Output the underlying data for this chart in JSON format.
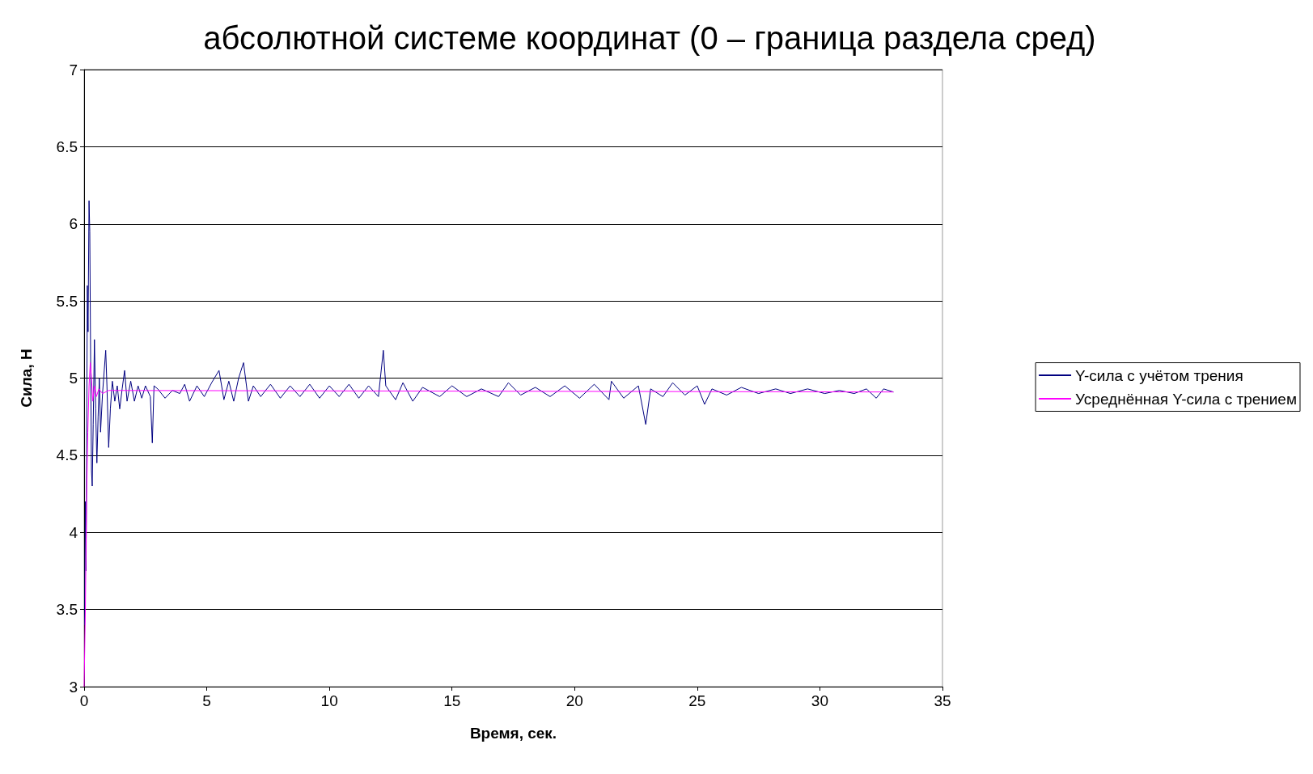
{
  "chart_data": {
    "type": "line",
    "title": "абсолютной системе координат (0 – граница раздела сред)",
    "xlabel": "Время, сек.",
    "ylabel": "Сила, Н",
    "xlim": [
      0,
      35
    ],
    "xticks": [
      0,
      5,
      10,
      15,
      20,
      25,
      30,
      35
    ],
    "ylim": [
      3,
      7
    ],
    "yticks": [
      3,
      3.5,
      4,
      4.5,
      5,
      5.5,
      6,
      6.5,
      7
    ],
    "grid": "y",
    "legend": "right",
    "marker": "none",
    "line_style": "solid",
    "series": [
      {
        "name": "Y-сила с учётом трения",
        "color": "#000080",
        "x": [
          0.02,
          0.05,
          0.08,
          0.1,
          0.13,
          0.16,
          0.2,
          0.23,
          0.27,
          0.3,
          0.33,
          0.37,
          0.42,
          0.47,
          0.52,
          0.57,
          0.62,
          0.67,
          0.75,
          0.82,
          0.88,
          0.93,
          1.0,
          1.07,
          1.15,
          1.25,
          1.35,
          1.45,
          1.55,
          1.65,
          1.75,
          1.9,
          2.05,
          2.2,
          2.35,
          2.5,
          2.7,
          2.78,
          2.85,
          3.0,
          3.3,
          3.6,
          3.9,
          4.1,
          4.3,
          4.6,
          4.9,
          5.2,
          5.5,
          5.7,
          5.9,
          6.1,
          6.3,
          6.5,
          6.7,
          6.9,
          7.2,
          7.6,
          8.0,
          8.4,
          8.8,
          9.2,
          9.6,
          10.0,
          10.4,
          10.8,
          11.2,
          11.6,
          12.0,
          12.2,
          12.3,
          12.7,
          13.0,
          13.4,
          13.8,
          14.5,
          15.0,
          15.6,
          16.2,
          16.9,
          17.3,
          17.8,
          18.4,
          19.0,
          19.6,
          20.2,
          20.8,
          21.4,
          21.5,
          22.0,
          22.6,
          22.9,
          23.1,
          23.6,
          24.0,
          24.5,
          25.0,
          25.3,
          25.6,
          26.2,
          26.8,
          27.5,
          28.2,
          28.8,
          29.5,
          30.2,
          30.8,
          31.4,
          31.9,
          32.3,
          32.6,
          33.0
        ],
        "values": [
          3.4,
          4.2,
          3.75,
          4.5,
          5.6,
          5.3,
          6.15,
          5.95,
          5.0,
          4.4,
          4.3,
          4.7,
          5.25,
          4.8,
          4.45,
          4.75,
          5.0,
          4.65,
          4.9,
          5.05,
          5.18,
          4.95,
          4.55,
          4.8,
          4.98,
          4.85,
          4.95,
          4.8,
          4.93,
          5.05,
          4.85,
          4.98,
          4.85,
          4.95,
          4.87,
          4.95,
          4.88,
          4.58,
          4.95,
          4.93,
          4.87,
          4.92,
          4.9,
          4.96,
          4.85,
          4.95,
          4.88,
          4.97,
          5.05,
          4.86,
          4.98,
          4.85,
          5.0,
          5.1,
          4.85,
          4.95,
          4.88,
          4.96,
          4.87,
          4.95,
          4.88,
          4.96,
          4.87,
          4.95,
          4.88,
          4.96,
          4.87,
          4.95,
          4.88,
          5.18,
          4.95,
          4.86,
          4.97,
          4.85,
          4.94,
          4.88,
          4.95,
          4.88,
          4.93,
          4.88,
          4.97,
          4.89,
          4.94,
          4.88,
          4.95,
          4.87,
          4.96,
          4.86,
          4.98,
          4.87,
          4.95,
          4.7,
          4.93,
          4.88,
          4.97,
          4.89,
          4.95,
          4.83,
          4.93,
          4.89,
          4.94,
          4.9,
          4.93,
          4.9,
          4.93,
          4.9,
          4.92,
          4.9,
          4.93,
          4.87,
          4.93,
          4.91
        ]
      },
      {
        "name": "Усреднённая Y-сила с трением",
        "color": "#ff00ff",
        "x": [
          0,
          0.05,
          0.1,
          0.15,
          0.2,
          0.25,
          0.3,
          0.35,
          0.42,
          0.5,
          0.6,
          0.75,
          1.0,
          33.0
        ],
        "values": [
          3.0,
          3.5,
          4.2,
          4.65,
          4.95,
          5.1,
          5.0,
          4.85,
          4.95,
          4.88,
          4.93,
          4.9,
          4.92,
          4.91
        ]
      }
    ]
  }
}
